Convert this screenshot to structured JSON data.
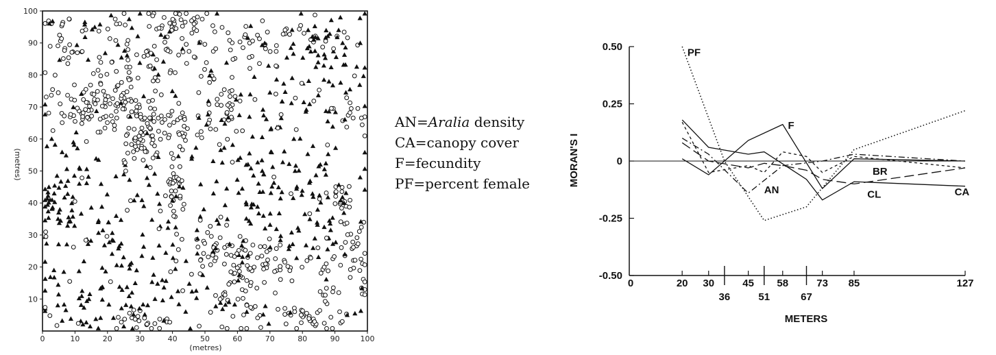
{
  "chart_data": [
    {
      "type": "scatter",
      "xlabel": "(metres)",
      "ylabel": "(metres)",
      "xlim": [
        0,
        100
      ],
      "ylim": [
        0,
        100
      ],
      "x_ticks": [
        "0",
        "10",
        "20",
        "30",
        "40",
        "50",
        "60",
        "70",
        "80",
        "90",
        "100"
      ],
      "y_ticks": [
        "10",
        "20",
        "30",
        "40",
        "50",
        "60",
        "70",
        "80",
        "90",
        "100"
      ],
      "series": [
        {
          "marker": "open-circle",
          "point_count_approx": 650
        },
        {
          "marker": "filled-triangle",
          "point_count_approx": 420
        }
      ],
      "clusters": [
        {
          "marker": "open-circle",
          "center": [
            20,
            69
          ],
          "spread": [
            8,
            3
          ],
          "n": 70
        },
        {
          "marker": "open-circle",
          "center": [
            32,
            59
          ],
          "spread": [
            4,
            4
          ],
          "n": 45
        },
        {
          "marker": "open-circle",
          "center": [
            41,
            45
          ],
          "spread": [
            2,
            8
          ],
          "n": 35
        },
        {
          "marker": "open-circle",
          "center": [
            42,
            64
          ],
          "spread": [
            5,
            4
          ],
          "n": 30
        },
        {
          "marker": "open-circle",
          "center": [
            8,
            90
          ],
          "spread": [
            3,
            5
          ],
          "n": 25
        },
        {
          "marker": "open-circle",
          "center": [
            12,
            72
          ],
          "spread": [
            6,
            5
          ],
          "n": 25
        },
        {
          "marker": "open-circle",
          "center": [
            56,
            70
          ],
          "spread": [
            4,
            8
          ],
          "n": 30
        },
        {
          "marker": "open-circle",
          "center": [
            62,
            14
          ],
          "spread": [
            5,
            7
          ],
          "n": 55
        },
        {
          "marker": "open-circle",
          "center": [
            70,
            20
          ],
          "spread": [
            5,
            5
          ],
          "n": 30
        },
        {
          "marker": "open-circle",
          "center": [
            53,
            26
          ],
          "spread": [
            4,
            4
          ],
          "n": 25
        },
        {
          "marker": "open-circle",
          "center": [
            95,
            24
          ],
          "spread": [
            3,
            6
          ],
          "n": 35
        },
        {
          "marker": "open-circle",
          "center": [
            92,
            42
          ],
          "spread": [
            2,
            3
          ],
          "n": 15
        },
        {
          "marker": "open-circle",
          "center": [
            84,
            4
          ],
          "spread": [
            6,
            2
          ],
          "n": 30
        },
        {
          "marker": "open-circle",
          "center": [
            40,
            97
          ],
          "spread": [
            5,
            3
          ],
          "n": 20
        },
        {
          "marker": "open-circle",
          "center": [
            48,
            88
          ],
          "spread": [
            10,
            6
          ],
          "n": 40
        },
        {
          "marker": "open-circle",
          "center": [
            62,
            93
          ],
          "spread": [
            6,
            4
          ],
          "n": 20
        },
        {
          "marker": "open-circle",
          "center": [
            78,
            92
          ],
          "spread": [
            8,
            4
          ],
          "n": 20
        },
        {
          "marker": "open-circle",
          "center": [
            96,
            70
          ],
          "spread": [
            3,
            6
          ],
          "n": 15
        },
        {
          "marker": "open-circle",
          "center": [
            28,
            82
          ],
          "spread": [
            10,
            8
          ],
          "n": 40
        },
        {
          "marker": "open-circle",
          "center": [
            30,
            3
          ],
          "spread": [
            5,
            2
          ],
          "n": 20
        },
        {
          "marker": "open-circle",
          "center": [
            85,
            15
          ],
          "spread": [
            4,
            4
          ],
          "n": 15
        },
        {
          "marker": "filled-triangle",
          "center": [
            4,
            38
          ],
          "spread": [
            3,
            5
          ],
          "n": 35
        },
        {
          "marker": "filled-triangle",
          "center": [
            20,
            25
          ],
          "spread": [
            8,
            10
          ],
          "n": 45
        },
        {
          "marker": "filled-triangle",
          "center": [
            12,
            10
          ],
          "spread": [
            8,
            5
          ],
          "n": 30
        },
        {
          "marker": "filled-triangle",
          "center": [
            68,
            38
          ],
          "spread": [
            10,
            8
          ],
          "n": 50
        },
        {
          "marker": "filled-triangle",
          "center": [
            82,
            78
          ],
          "spread": [
            8,
            8
          ],
          "n": 40
        },
        {
          "marker": "filled-triangle",
          "center": [
            90,
            90
          ],
          "spread": [
            6,
            6
          ],
          "n": 30
        },
        {
          "marker": "filled-triangle",
          "center": [
            85,
            35
          ],
          "spread": [
            6,
            10
          ],
          "n": 30
        },
        {
          "marker": "filled-triangle",
          "center": [
            10,
            55
          ],
          "spread": [
            6,
            8
          ],
          "n": 25
        },
        {
          "marker": "filled-triangle",
          "center": [
            30,
            42
          ],
          "spread": [
            8,
            8
          ],
          "n": 25
        },
        {
          "marker": "filled-triangle",
          "center": [
            75,
            55
          ],
          "spread": [
            12,
            10
          ],
          "n": 30
        },
        {
          "marker": "filled-triangle",
          "center": [
            45,
            12
          ],
          "spread": [
            10,
            8
          ],
          "n": 30
        },
        {
          "marker": "filled-triangle",
          "center": [
            22,
            93
          ],
          "spread": [
            10,
            5
          ],
          "n": 20
        },
        {
          "marker": "filled-triangle",
          "center": [
            62,
            55
          ],
          "spread": [
            10,
            8
          ],
          "n": 20
        },
        {
          "marker": "filled-triangle",
          "center": [
            50,
            40
          ],
          "spread": [
            10,
            10
          ],
          "n": 20
        }
      ]
    },
    {
      "type": "line",
      "ylabel": "MORAN'S I",
      "xlabel": "METERS",
      "xlim": [
        0,
        127
      ],
      "ylim": [
        -0.5,
        0.5
      ],
      "y_ticks": [
        "0.50",
        "0.25",
        "0",
        "-0.25",
        "-0.50"
      ],
      "x_ticks_upper": [
        "20",
        "30",
        "45",
        "58",
        "73",
        "85",
        "127"
      ],
      "x_ticks_upper_values": [
        20,
        30,
        45,
        58,
        73,
        85,
        127
      ],
      "x_ticks_lower": [
        "36",
        "51",
        "67"
      ],
      "x_ticks_lower_values": [
        36,
        51,
        67
      ],
      "x_origin_label": "0",
      "series": [
        {
          "name": "PF",
          "dash": "dotted",
          "points": [
            [
              20,
              0.5
            ],
            [
              36,
              0.0
            ],
            [
              51,
              -0.26
            ],
            [
              67,
              -0.2
            ],
            [
              85,
              0.05
            ],
            [
              127,
              0.22
            ]
          ],
          "label_at": [
            22,
            0.46
          ]
        },
        {
          "name": "F",
          "dash": "solid",
          "points": [
            [
              20,
              0.01
            ],
            [
              30,
              -0.06
            ],
            [
              45,
              0.09
            ],
            [
              58,
              0.16
            ],
            [
              73,
              -0.12
            ],
            [
              85,
              0.01
            ],
            [
              127,
              0.0
            ]
          ],
          "label_at": [
            60,
            0.14
          ]
        },
        {
          "name": "CA",
          "dash": "solid",
          "points": [
            [
              20,
              0.18
            ],
            [
              30,
              0.06
            ],
            [
              45,
              0.03
            ],
            [
              51,
              0.04
            ],
            [
              67,
              -0.08
            ],
            [
              73,
              -0.17
            ],
            [
              85,
              -0.09
            ],
            [
              127,
              -0.11
            ]
          ],
          "label_at": [
            123,
            -0.15
          ]
        },
        {
          "name": "AN",
          "dash": "dash-dot",
          "points": [
            [
              20,
              0.1
            ],
            [
              30,
              0.03
            ],
            [
              45,
              -0.14
            ],
            [
              58,
              -0.02
            ],
            [
              73,
              0.0
            ],
            [
              85,
              0.03
            ],
            [
              127,
              0.0
            ]
          ],
          "label_at": [
            51,
            -0.14
          ]
        },
        {
          "name": "BR",
          "dash": "short-dash",
          "points": [
            [
              20,
              0.17
            ],
            [
              30,
              -0.05
            ],
            [
              45,
              -0.02
            ],
            [
              51,
              -0.05
            ],
            [
              58,
              0.04
            ],
            [
              67,
              0.02
            ],
            [
              73,
              -0.05
            ],
            [
              85,
              0.02
            ],
            [
              127,
              -0.03
            ]
          ],
          "label_at": [
            92,
            -0.06
          ]
        },
        {
          "name": "CL",
          "dash": "long-dash",
          "points": [
            [
              20,
              0.08
            ],
            [
              30,
              0.0
            ],
            [
              45,
              -0.03
            ],
            [
              51,
              -0.01
            ],
            [
              58,
              -0.02
            ],
            [
              67,
              -0.04
            ],
            [
              73,
              -0.08
            ],
            [
              85,
              -0.1
            ],
            [
              127,
              -0.03
            ]
          ],
          "label_at": [
            90,
            -0.16
          ]
        }
      ]
    }
  ],
  "legend_text": {
    "line1_prefix": "AN=",
    "line1_italic": "Aralia",
    "line1_suffix": " density",
    "line2": "CA=canopy cover",
    "line3": "F=fecundity",
    "line4": "PF=percent female"
  }
}
